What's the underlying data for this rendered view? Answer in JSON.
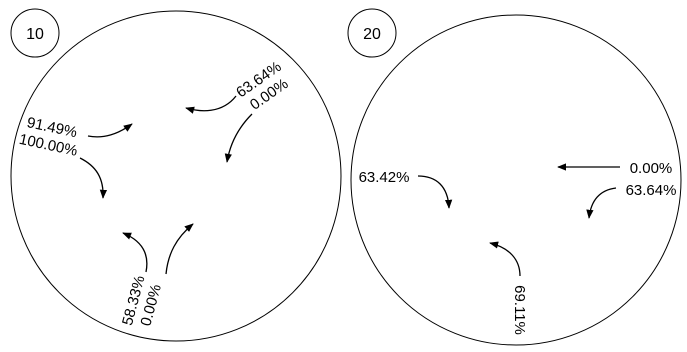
{
  "panels": [
    {
      "label": "10",
      "annotations": [
        {
          "id": "a1",
          "lines": [
            "63.64%",
            "0.00%"
          ]
        },
        {
          "id": "a2",
          "lines": [
            "91.49%",
            "100.00%"
          ]
        },
        {
          "id": "a3",
          "lines": [
            "58.33%",
            "0.00%"
          ]
        }
      ]
    },
    {
      "label": "20",
      "annotations": [
        {
          "id": "b1",
          "lines": [
            "0.00%",
            "63.64%"
          ]
        },
        {
          "id": "b2",
          "lines": [
            "63.42%"
          ]
        },
        {
          "id": "b3",
          "lines": [
            "69.11%"
          ]
        }
      ]
    }
  ],
  "colors": {
    "stroke": "#000000",
    "background": "#ffffff"
  }
}
